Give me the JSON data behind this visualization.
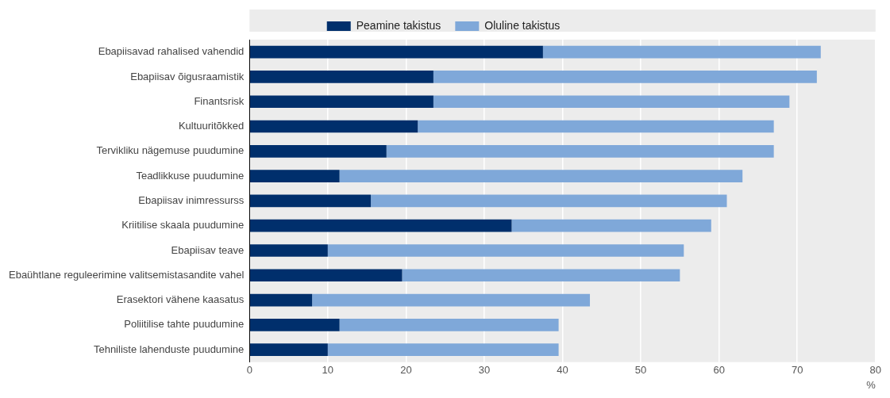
{
  "chart_data": {
    "type": "bar",
    "orientation": "horizontal",
    "stacked": true,
    "categories": [
      "Ebapiisavad rahalised vahendid",
      "Ebapiisav õigusraamistik",
      "Finantsrisk",
      "Kultuuritõkked",
      "Tervikliku nägemuse puudumine",
      "Teadlikkuse puudumine",
      "Ebapiisav inimressurss",
      "Kriitilise skaala puudumine",
      "Ebapiisav teave",
      "Ebaühtlane reguleerimine valitsemistasandite vahel",
      "Erasektori vähene kaasatus",
      "Poliitilise tahte puudumine",
      "Tehniliste lahenduste puudumine"
    ],
    "series": [
      {
        "name": "Peamine takistus",
        "color": "#002f6c",
        "values": [
          37.5,
          23.5,
          23.5,
          21.5,
          17.5,
          11.5,
          15.5,
          33.5,
          10,
          19.5,
          8,
          11.5,
          10
        ]
      },
      {
        "name": "Oluline takistus",
        "color": "#7fa8d9",
        "values": [
          35.5,
          49,
          45.5,
          45.5,
          49.5,
          51.5,
          45.5,
          25.5,
          45.5,
          35.5,
          35.5,
          28,
          29.5
        ]
      }
    ],
    "xlim": [
      0,
      80
    ],
    "xticks": [
      0,
      10,
      20,
      30,
      40,
      50,
      60,
      70,
      80
    ],
    "xlabel": "%",
    "grid": "x",
    "legend": "top"
  }
}
